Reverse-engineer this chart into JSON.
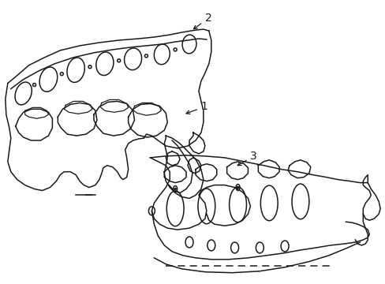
{
  "background_color": "#ffffff",
  "line_color": "#1a1a1a",
  "line_width": 1.1,
  "label_1": "1",
  "label_2": "2",
  "label_3": "3",
  "figsize": [
    4.89,
    3.6
  ],
  "dpi": 100,
  "img_extent": [
    0,
    489,
    0,
    360
  ]
}
